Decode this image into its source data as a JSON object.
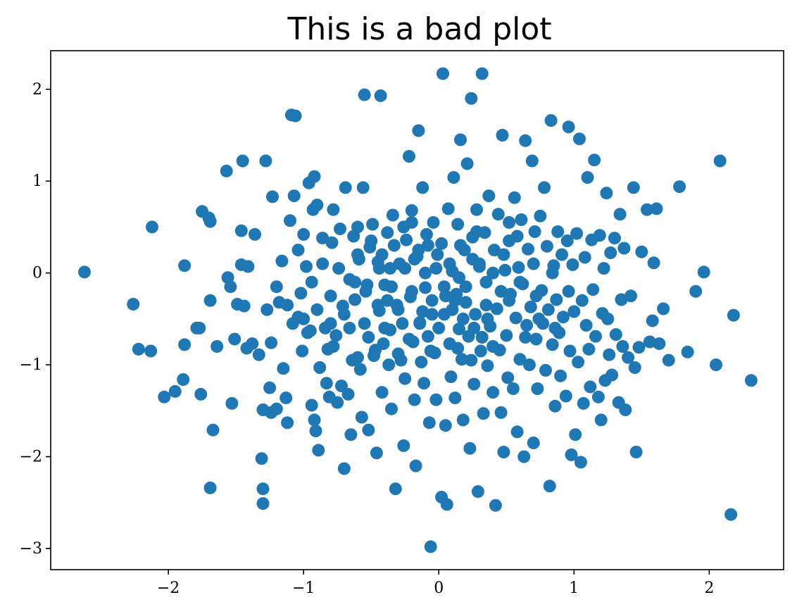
{
  "chart_data": {
    "type": "scatter",
    "title": "This is a bad plot",
    "xlabel": "",
    "ylabel": "",
    "xlim": [
      -2.87,
      2.55
    ],
    "ylim": [
      -3.23,
      2.42
    ],
    "grid": false,
    "xticks": [
      -2,
      -1,
      0,
      1,
      2
    ],
    "yticks": [
      -3,
      -2,
      -1,
      0,
      1,
      2
    ],
    "xtick_labels": [
      "−2",
      "−1",
      "0",
      "1",
      "2"
    ],
    "ytick_labels": [
      "−3",
      "−2",
      "−1",
      "0",
      "1",
      "2"
    ],
    "marker_color": "#1f77b4",
    "points": [
      [
        -2.62,
        0.01
      ],
      [
        -2.26,
        -0.34
      ],
      [
        -2.22,
        -0.83
      ],
      [
        -2.13,
        -0.85
      ],
      [
        -2.12,
        0.5
      ],
      [
        -2.03,
        -1.35
      ],
      [
        -1.95,
        -1.29
      ],
      [
        -1.89,
        -1.16
      ],
      [
        -1.88,
        -0.78
      ],
      [
        -1.88,
        0.08
      ],
      [
        -1.79,
        -0.6
      ],
      [
        -1.77,
        -0.6
      ],
      [
        -1.76,
        -1.32
      ],
      [
        -1.75,
        0.67
      ],
      [
        -1.7,
        0.6
      ],
      [
        -1.69,
        0.56
      ],
      [
        -1.69,
        -0.3
      ],
      [
        -1.69,
        -2.34
      ],
      [
        -1.67,
        -1.71
      ],
      [
        -1.64,
        -0.8
      ],
      [
        -1.57,
        1.11
      ],
      [
        -1.56,
        -0.05
      ],
      [
        -1.54,
        -0.15
      ],
      [
        -1.53,
        -1.42
      ],
      [
        -1.51,
        -0.72
      ],
      [
        -1.49,
        -0.34
      ],
      [
        -1.46,
        0.46
      ],
      [
        -1.46,
        0.09
      ],
      [
        -1.45,
        1.22
      ],
      [
        -1.44,
        -0.36
      ],
      [
        -1.42,
        -0.82
      ],
      [
        -1.41,
        0.07
      ],
      [
        -1.38,
        -0.77
      ],
      [
        -1.36,
        0.42
      ],
      [
        -1.33,
        -0.89
      ],
      [
        -1.31,
        -2.02
      ],
      [
        -1.3,
        -2.51
      ],
      [
        -1.3,
        -2.35
      ],
      [
        -1.3,
        -1.49
      ],
      [
        -1.28,
        1.22
      ],
      [
        -1.27,
        -0.4
      ],
      [
        -1.25,
        -1.25
      ],
      [
        -1.24,
        -1.52
      ],
      [
        -1.24,
        -0.76
      ],
      [
        -1.23,
        0.83
      ],
      [
        -1.2,
        -1.48
      ],
      [
        -1.18,
        -0.32
      ],
      [
        -1.16,
        0.13
      ],
      [
        -1.15,
        -1.04
      ],
      [
        -1.13,
        -1.36
      ],
      [
        -1.12,
        -1.63
      ],
      [
        -1.1,
        0.57
      ],
      [
        -1.09,
        1.72
      ],
      [
        -1.08,
        -0.55
      ],
      [
        -1.07,
        0.84
      ],
      [
        -1.06,
        1.71
      ],
      [
        -1.04,
        -0.48
      ],
      [
        -1.02,
        -0.22
      ],
      [
        -1.01,
        -0.85
      ],
      [
        -1.0,
        0.42
      ],
      [
        -0.98,
        0.07
      ],
      [
        -0.97,
        -0.65
      ],
      [
        -0.96,
        0.98
      ],
      [
        -0.95,
        -0.63
      ],
      [
        -0.94,
        -1.44
      ],
      [
        -0.93,
        0.69
      ],
      [
        -0.92,
        -1.6
      ],
      [
        -0.92,
        1.05
      ],
      [
        -0.91,
        -1.72
      ],
      [
        -0.9,
        0.74
      ],
      [
        -0.89,
        -1.93
      ],
      [
        -0.88,
        -1.03
      ],
      [
        -0.86,
        0.38
      ],
      [
        -0.84,
        -0.6
      ],
      [
        -0.83,
        -1.2
      ],
      [
        -0.82,
        -0.83
      ],
      [
        -0.81,
        -1.35
      ],
      [
        -0.8,
        -0.55
      ],
      [
        -0.79,
        0.33
      ],
      [
        -0.78,
        0.69
      ],
      [
        -0.76,
        -0.68
      ],
      [
        -0.75,
        -1.41
      ],
      [
        -0.73,
        0.48
      ],
      [
        -0.72,
        -1.23
      ],
      [
        -0.71,
        -0.36
      ],
      [
        -0.7,
        -2.13
      ],
      [
        -0.69,
        0.93
      ],
      [
        -0.67,
        -1.32
      ],
      [
        -0.66,
        -0.07
      ],
      [
        -0.65,
        -1.76
      ],
      [
        -0.63,
        0.4
      ],
      [
        -0.62,
        -0.29
      ],
      [
        -0.6,
        -0.92
      ],
      [
        -0.59,
        0.15
      ],
      [
        -0.58,
        -1.05
      ],
      [
        -0.57,
        -1.57
      ],
      [
        -0.56,
        0.93
      ],
      [
        -0.55,
        1.94
      ],
      [
        -0.53,
        -0.13
      ],
      [
        -0.52,
        -1.71
      ],
      [
        -0.51,
        0.28
      ],
      [
        -0.49,
        0.53
      ],
      [
        -0.47,
        -0.84
      ],
      [
        -0.46,
        -1.96
      ],
      [
        -0.45,
        0.12
      ],
      [
        -0.44,
        -0.41
      ],
      [
        -0.43,
        1.93
      ],
      [
        -0.42,
        -1.3
      ],
      [
        -0.41,
        -0.77
      ],
      [
        -0.4,
        -0.13
      ],
      [
        -0.38,
        0.44
      ],
      [
        -0.37,
        -1.0
      ],
      [
        -0.36,
        -0.62
      ],
      [
        -0.35,
        -1.48
      ],
      [
        -0.34,
        0.63
      ],
      [
        -0.32,
        -2.35
      ],
      [
        -0.31,
        -0.35
      ],
      [
        -0.3,
        -0.88
      ],
      [
        -0.29,
        0.1
      ],
      [
        -0.27,
        -0.55
      ],
      [
        -0.26,
        -1.88
      ],
      [
        -0.25,
        -1.15
      ],
      [
        -0.24,
        0.36
      ],
      [
        -0.22,
        1.27
      ],
      [
        -0.21,
        -0.26
      ],
      [
        -0.2,
        0.68
      ],
      [
        -0.19,
        -0.75
      ],
      [
        -0.18,
        -1.38
      ],
      [
        -0.17,
        -2.1
      ],
      [
        -0.16,
        0.18
      ],
      [
        -0.15,
        1.55
      ],
      [
        -0.14,
        -0.54
      ],
      [
        -0.13,
        -0.97
      ],
      [
        -0.12,
        0.93
      ],
      [
        -0.11,
        -1.2
      ],
      [
        -0.1,
        -0.16
      ],
      [
        -0.09,
        0.42
      ],
      [
        -0.08,
        -0.69
      ],
      [
        -0.07,
        -1.63
      ],
      [
        -0.06,
        -2.98
      ],
      [
        -0.05,
        -0.3
      ],
      [
        -0.04,
        0.55
      ],
      [
        -0.03,
        -0.87
      ],
      [
        -0.02,
        -1.38
      ],
      [
        -0.01,
        0.2
      ],
      [
        0.02,
        -2.44
      ],
      [
        0.03,
        2.17
      ],
      [
        0.04,
        -0.45
      ],
      [
        0.05,
        -1.66
      ],
      [
        0.06,
        -2.52
      ],
      [
        0.07,
        0.7
      ],
      [
        0.08,
        -0.77
      ],
      [
        0.09,
        -1.13
      ],
      [
        0.1,
        0.02
      ],
      [
        0.11,
        1.04
      ],
      [
        0.12,
        -1.36
      ],
      [
        0.13,
        -0.23
      ],
      [
        0.14,
        0.53
      ],
      [
        0.15,
        -0.61
      ],
      [
        0.16,
        1.45
      ],
      [
        0.17,
        -0.94
      ],
      [
        0.18,
        -1.6
      ],
      [
        0.19,
        0.25
      ],
      [
        0.2,
        -0.32
      ],
      [
        0.21,
        1.19
      ],
      [
        0.22,
        -0.69
      ],
      [
        0.23,
        -1.91
      ],
      [
        0.24,
        1.9
      ],
      [
        0.25,
        0.39
      ],
      [
        0.26,
        -1.21
      ],
      [
        0.27,
        -0.45
      ],
      [
        0.28,
        0.69
      ],
      [
        0.29,
        -2.38
      ],
      [
        0.3,
        0.07
      ],
      [
        0.31,
        -0.85
      ],
      [
        0.32,
        2.17
      ],
      [
        0.33,
        -1.53
      ],
      [
        0.34,
        0.44
      ],
      [
        0.35,
        -0.1
      ],
      [
        0.36,
        -1.01
      ],
      [
        0.37,
        0.84
      ],
      [
        0.38,
        -0.58
      ],
      [
        0.4,
        -1.3
      ],
      [
        0.41,
        0.25
      ],
      [
        0.42,
        -2.53
      ],
      [
        0.43,
        -0.39
      ],
      [
        0.44,
        0.64
      ],
      [
        0.45,
        -0.84
      ],
      [
        0.46,
        -1.52
      ],
      [
        0.47,
        1.5
      ],
      [
        0.48,
        -1.95
      ],
      [
        0.49,
        0.03
      ],
      [
        0.5,
        -0.68
      ],
      [
        0.51,
        -1.14
      ],
      [
        0.52,
        0.35
      ],
      [
        0.53,
        -0.23
      ],
      [
        0.55,
        -1.26
      ],
      [
        0.56,
        0.82
      ],
      [
        0.57,
        -0.49
      ],
      [
        0.58,
        -1.73
      ],
      [
        0.59,
        0.06
      ],
      [
        0.6,
        -0.94
      ],
      [
        0.61,
        0.58
      ],
      [
        0.62,
        -0.12
      ],
      [
        0.63,
        -2.0
      ],
      [
        0.64,
        1.44
      ],
      [
        0.65,
        -0.57
      ],
      [
        0.66,
        0.26
      ],
      [
        0.67,
        -1.0
      ],
      [
        0.68,
        -0.37
      ],
      [
        0.69,
        1.22
      ],
      [
        0.7,
        -1.85
      ],
      [
        0.71,
        0.45
      ],
      [
        0.72,
        -0.72
      ],
      [
        0.73,
        -1.26
      ],
      [
        0.75,
        0.62
      ],
      [
        0.76,
        -0.19
      ],
      [
        0.77,
        -0.55
      ],
      [
        0.78,
        0.93
      ],
      [
        0.79,
        -1.06
      ],
      [
        0.8,
        0.29
      ],
      [
        0.81,
        -0.4
      ],
      [
        0.82,
        -2.32
      ],
      [
        0.83,
        1.66
      ],
      [
        0.84,
        -0.78
      ],
      [
        0.85,
        0.08
      ],
      [
        0.86,
        -1.45
      ],
      [
        0.87,
        -0.29
      ],
      [
        0.88,
        0.45
      ],
      [
        0.89,
        -0.65
      ],
      [
        0.9,
        -1.12
      ],
      [
        0.91,
        0.2
      ],
      [
        0.92,
        -0.48
      ],
      [
        0.94,
        -1.34
      ],
      [
        0.95,
        0.35
      ],
      [
        0.96,
        1.59
      ],
      [
        0.97,
        -0.85
      ],
      [
        0.98,
        -1.98
      ],
      [
        0.99,
        0.09
      ],
      [
        1.0,
        -0.42
      ],
      [
        1.01,
        -1.76
      ],
      [
        1.02,
        0.43
      ],
      [
        1.03,
        -0.97
      ],
      [
        1.04,
        1.46
      ],
      [
        1.05,
        -2.06
      ],
      [
        1.06,
        -0.3
      ],
      [
        1.07,
        -1.42
      ],
      [
        1.08,
        0.17
      ],
      [
        1.09,
        -0.57
      ],
      [
        1.1,
        1.04
      ],
      [
        1.11,
        -0.83
      ],
      [
        1.12,
        -1.24
      ],
      [
        1.13,
        0.36
      ],
      [
        1.14,
        -0.18
      ],
      [
        1.15,
        1.23
      ],
      [
        1.16,
        -0.69
      ],
      [
        1.18,
        -1.35
      ],
      [
        1.19,
        0.41
      ],
      [
        1.2,
        -1.6
      ],
      [
        1.21,
        -0.44
      ],
      [
        1.22,
        0.05
      ],
      [
        1.23,
        -1.17
      ],
      [
        1.24,
        0.87
      ],
      [
        1.25,
        -0.5
      ],
      [
        1.26,
        -0.89
      ],
      [
        1.27,
        0.22
      ],
      [
        1.28,
        -1.11
      ],
      [
        1.3,
        0.38
      ],
      [
        1.31,
        -0.67
      ],
      [
        1.33,
        -1.41
      ],
      [
        1.34,
        0.64
      ],
      [
        1.35,
        -0.29
      ],
      [
        1.36,
        -0.8
      ],
      [
        1.37,
        0.27
      ],
      [
        1.38,
        -1.49
      ],
      [
        1.4,
        -0.92
      ],
      [
        1.42,
        -0.25
      ],
      [
        1.44,
        0.93
      ],
      [
        1.45,
        -1.03
      ],
      [
        1.46,
        -1.95
      ],
      [
        1.48,
        -0.81
      ],
      [
        1.5,
        0.23
      ],
      [
        1.54,
        0.69
      ],
      [
        1.56,
        -0.75
      ],
      [
        1.58,
        -0.52
      ],
      [
        1.59,
        0.11
      ],
      [
        1.61,
        0.7
      ],
      [
        1.63,
        -0.77
      ],
      [
        1.66,
        -0.39
      ],
      [
        1.7,
        -0.95
      ],
      [
        1.78,
        0.94
      ],
      [
        1.84,
        -0.86
      ],
      [
        1.9,
        -0.2
      ],
      [
        1.96,
        0.01
      ],
      [
        2.05,
        -1.0
      ],
      [
        2.08,
        1.22
      ],
      [
        2.16,
        -2.63
      ],
      [
        2.18,
        -0.46
      ],
      [
        2.31,
        -1.17
      ],
      [
        -0.55,
        -0.55
      ],
      [
        -0.45,
        -0.35
      ],
      [
        -0.35,
        -0.15
      ],
      [
        -0.25,
        0.05
      ],
      [
        -0.15,
        0.25
      ],
      [
        -0.05,
        -0.45
      ],
      [
        0.05,
        -0.25
      ],
      [
        0.15,
        -0.05
      ],
      [
        0.25,
        0.15
      ],
      [
        0.35,
        -0.35
      ],
      [
        -0.6,
        0.2
      ],
      [
        -0.5,
        0.35
      ],
      [
        -0.4,
        -0.6
      ],
      [
        -0.3,
        -0.4
      ],
      [
        -0.2,
        -0.2
      ],
      [
        -0.1,
        0.0
      ],
      [
        0.0,
        -0.6
      ],
      [
        0.1,
        -0.4
      ],
      [
        0.2,
        -0.15
      ],
      [
        0.3,
        0.1
      ],
      [
        -0.8,
        -0.25
      ],
      [
        -0.7,
        -0.45
      ],
      [
        -0.62,
        -0.1
      ],
      [
        -0.48,
        -0.9
      ],
      [
        -0.36,
        0.05
      ],
      [
        -0.22,
        -0.72
      ],
      [
        -0.12,
        -0.42
      ],
      [
        0.02,
        0.32
      ],
      [
        0.14,
        -0.82
      ],
      [
        0.26,
        -0.6
      ],
      [
        0.4,
        0.0
      ],
      [
        0.52,
        -0.3
      ],
      [
        0.64,
        -0.7
      ],
      [
        0.74,
        -0.5
      ],
      [
        0.86,
        -0.6
      ],
      [
        -1.0,
        -0.5
      ],
      [
        -0.9,
        -0.4
      ],
      [
        -0.78,
        -0.8
      ],
      [
        -0.66,
        -0.6
      ],
      [
        -0.54,
        -0.2
      ],
      [
        -0.42,
        0.2
      ],
      [
        -0.28,
        -0.95
      ],
      [
        -0.18,
        0.15
      ],
      [
        -0.06,
        -0.85
      ],
      [
        0.08,
        0.1
      ],
      [
        0.18,
        -0.5
      ],
      [
        0.32,
        -0.7
      ],
      [
        0.46,
        -0.2
      ],
      [
        0.58,
        0.4
      ],
      [
        0.7,
        0.1
      ],
      [
        -1.2,
        -0.15
      ],
      [
        -1.12,
        -0.35
      ],
      [
        -1.04,
        0.25
      ],
      [
        -0.94,
        -0.1
      ],
      [
        -0.86,
        0.1
      ],
      [
        -0.74,
        0.05
      ],
      [
        -0.64,
        -0.95
      ],
      [
        -0.52,
        -0.7
      ],
      [
        -0.38,
        -0.3
      ],
      [
        -0.26,
        0.5
      ],
      [
        -0.14,
        -0.55
      ],
      [
        -0.02,
        0.05
      ],
      [
        0.12,
        -0.3
      ],
      [
        0.24,
        -0.95
      ],
      [
        0.36,
        -0.5
      ],
      [
        0.48,
        0.2
      ],
      [
        0.6,
        -0.1
      ],
      [
        0.72,
        -0.25
      ],
      [
        0.84,
        0.0
      ],
      [
        0.96,
        -0.2
      ],
      [
        -0.6,
        0.5
      ],
      [
        -0.44,
        0.05
      ],
      [
        -0.33,
        0.3
      ],
      [
        -0.2,
        0.55
      ],
      [
        -0.08,
        0.3
      ],
      [
        0.04,
        -0.15
      ],
      [
        0.16,
        0.3
      ],
      [
        0.28,
        0.45
      ],
      [
        0.4,
        -0.8
      ],
      [
        0.52,
        0.55
      ]
    ]
  }
}
